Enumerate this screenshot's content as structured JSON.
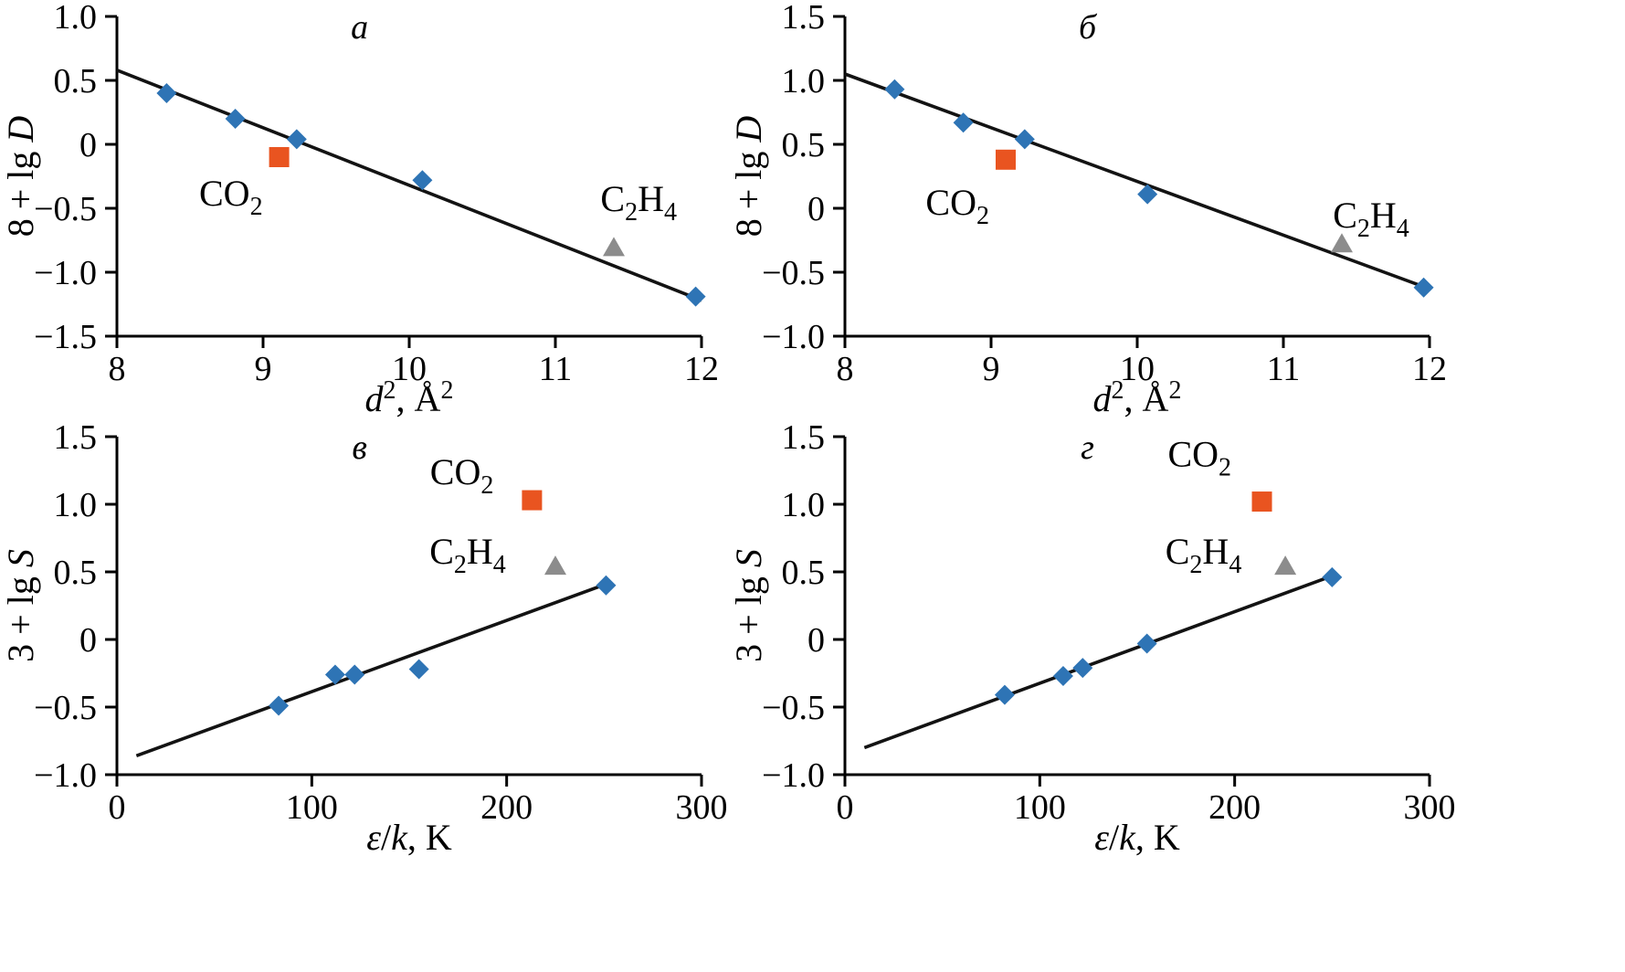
{
  "figure": {
    "background": "#ffffff"
  },
  "colors": {
    "axis": "#000000",
    "fit_line": "#131313",
    "diamond": "#2E74B5",
    "square": "#E95420",
    "triangle": "#8C8C8C"
  },
  "chart_data": [
    {
      "id": "a",
      "type": "scatter",
      "letter": "а",
      "xlim": [
        8,
        12
      ],
      "ylim": [
        -1.5,
        1.0
      ],
      "xticks": [
        {
          "v": 8,
          "label": "8"
        },
        {
          "v": 9,
          "label": "9"
        },
        {
          "v": 10,
          "label": "10"
        },
        {
          "v": 11,
          "label": "11"
        },
        {
          "v": 12,
          "label": "12"
        }
      ],
      "yticks": [
        {
          "v": 1.0,
          "label": "1.0"
        },
        {
          "v": 0.5,
          "label": "0.5"
        },
        {
          "v": 0,
          "label": "0"
        },
        {
          "v": -0.5,
          "label": "−0.5"
        },
        {
          "v": -1.0,
          "label": "−1.0"
        },
        {
          "v": -1.5,
          "label": "−1.5"
        }
      ],
      "xlabel": [
        {
          "t": "d",
          "i": true
        },
        {
          "t": "2",
          "sup": true
        },
        {
          "t": ", Å"
        },
        {
          "t": "2",
          "sup": true
        }
      ],
      "ylabel": [
        {
          "t": "8 + lg "
        },
        {
          "t": "D",
          "i": true
        }
      ],
      "fit_line": {
        "x1": 8,
        "y1": 0.58,
        "x2": 12,
        "y2": -1.22
      },
      "series": [
        {
          "name": "noble-gas-points",
          "marker": "diamond",
          "color": "#2E74B5",
          "points": [
            [
              8.34,
              0.4
            ],
            [
              8.81,
              0.2
            ],
            [
              9.23,
              0.04
            ],
            [
              10.09,
              -0.28
            ],
            [
              11.96,
              -1.19
            ]
          ]
        },
        {
          "name": "co2-point",
          "marker": "square",
          "color": "#E95420",
          "points": [
            [
              9.11,
              -0.1
            ]
          ]
        },
        {
          "name": "c2h4-point",
          "marker": "triangle",
          "color": "#8C8C8C",
          "points": [
            [
              11.4,
              -0.81
            ]
          ]
        }
      ],
      "annotations": [
        {
          "name": "co2-label",
          "x": 8.78,
          "y": -0.48,
          "segments": [
            {
              "t": "CO"
            },
            {
              "t": "2",
              "sub": true
            }
          ]
        },
        {
          "name": "c2h4-label",
          "x": 11.57,
          "y": -0.52,
          "segments": [
            {
              "t": "C"
            },
            {
              "t": "2",
              "sub": true
            },
            {
              "t": "H"
            },
            {
              "t": "4",
              "sub": true
            }
          ]
        }
      ]
    },
    {
      "id": "b",
      "type": "scatter",
      "letter": "б",
      "xlim": [
        8,
        12
      ],
      "ylim": [
        -1.0,
        1.5
      ],
      "xticks": [
        {
          "v": 8,
          "label": "8"
        },
        {
          "v": 9,
          "label": "9"
        },
        {
          "v": 10,
          "label": "10"
        },
        {
          "v": 11,
          "label": "11"
        },
        {
          "v": 12,
          "label": "12"
        }
      ],
      "yticks": [
        {
          "v": 1.5,
          "label": "1.5"
        },
        {
          "v": 1.0,
          "label": "1.0"
        },
        {
          "v": 0.5,
          "label": "0.5"
        },
        {
          "v": 0,
          "label": "0"
        },
        {
          "v": -0.5,
          "label": "−0.5"
        },
        {
          "v": -1.0,
          "label": "−1.0"
        }
      ],
      "xlabel": [
        {
          "t": "d",
          "i": true
        },
        {
          "t": "2",
          "sup": true
        },
        {
          "t": ", Å"
        },
        {
          "t": "2",
          "sup": true
        }
      ],
      "ylabel": [
        {
          "t": "8 + lg "
        },
        {
          "t": "D",
          "i": true
        }
      ],
      "fit_line": {
        "x1": 8,
        "y1": 1.05,
        "x2": 12,
        "y2": -0.63
      },
      "series": [
        {
          "name": "noble-gas-points",
          "marker": "diamond",
          "color": "#2E74B5",
          "points": [
            [
              8.34,
              0.93
            ],
            [
              8.81,
              0.67
            ],
            [
              9.23,
              0.54
            ],
            [
              10.07,
              0.11
            ],
            [
              11.96,
              -0.62
            ]
          ]
        },
        {
          "name": "co2-point",
          "marker": "square",
          "color": "#E95420",
          "points": [
            [
              9.1,
              0.38
            ]
          ]
        },
        {
          "name": "c2h4-point",
          "marker": "triangle",
          "color": "#8C8C8C",
          "points": [
            [
              11.4,
              -0.28
            ]
          ]
        }
      ],
      "annotations": [
        {
          "name": "co2-label",
          "x": 8.77,
          "y": -0.05,
          "segments": [
            {
              "t": "CO"
            },
            {
              "t": "2",
              "sub": true
            }
          ]
        },
        {
          "name": "c2h4-label",
          "x": 11.6,
          "y": -0.15,
          "segments": [
            {
              "t": "C"
            },
            {
              "t": "2",
              "sub": true
            },
            {
              "t": "H"
            },
            {
              "t": "4",
              "sub": true
            }
          ]
        }
      ]
    },
    {
      "id": "v",
      "type": "scatter",
      "letter": "в",
      "xlim": [
        0,
        300
      ],
      "ylim": [
        -1.0,
        1.5
      ],
      "xticks": [
        {
          "v": 0,
          "label": "0"
        },
        {
          "v": 100,
          "label": "100"
        },
        {
          "v": 200,
          "label": "200"
        },
        {
          "v": 300,
          "label": "300"
        }
      ],
      "yticks": [
        {
          "v": 1.5,
          "label": "1.5"
        },
        {
          "v": 1.0,
          "label": "1.0"
        },
        {
          "v": 0.5,
          "label": "0.5"
        },
        {
          "v": 0,
          "label": "0"
        },
        {
          "v": -0.5,
          "label": "−0.5"
        },
        {
          "v": -1.0,
          "label": "−1.0"
        }
      ],
      "xlabel": [
        {
          "t": "ε",
          "i": true
        },
        {
          "t": "/"
        },
        {
          "t": "k",
          "i": true
        },
        {
          "t": ", K"
        }
      ],
      "ylabel": [
        {
          "t": "3 + lg "
        },
        {
          "t": "S",
          "i": true
        }
      ],
      "fit_line": {
        "x1": 10,
        "y1": -0.86,
        "x2": 253,
        "y2": 0.42
      },
      "series": [
        {
          "name": "noble-gas-points",
          "marker": "diamond",
          "color": "#2E74B5",
          "points": [
            [
              83,
              -0.49
            ],
            [
              112,
              -0.26
            ],
            [
              122,
              -0.26
            ],
            [
              155,
              -0.22
            ],
            [
              251,
              0.4
            ]
          ]
        },
        {
          "name": "co2-point",
          "marker": "square",
          "color": "#E95420",
          "points": [
            [
              213,
              1.03
            ]
          ]
        },
        {
          "name": "c2h4-point",
          "marker": "triangle",
          "color": "#8C8C8C",
          "points": [
            [
              225,
              0.54
            ]
          ]
        }
      ],
      "annotations": [
        {
          "name": "co2-label",
          "x": 177,
          "y": 1.15,
          "segments": [
            {
              "t": "CO"
            },
            {
              "t": "2",
              "sub": true
            }
          ]
        },
        {
          "name": "c2h4-label",
          "x": 180,
          "y": 0.56,
          "segments": [
            {
              "t": "C"
            },
            {
              "t": "2",
              "sub": true
            },
            {
              "t": "H"
            },
            {
              "t": "4",
              "sub": true
            }
          ]
        }
      ]
    },
    {
      "id": "g",
      "type": "scatter",
      "letter": "г",
      "xlim": [
        0,
        300
      ],
      "ylim": [
        -1.0,
        1.5
      ],
      "xticks": [
        {
          "v": 0,
          "label": "0"
        },
        {
          "v": 100,
          "label": "100"
        },
        {
          "v": 200,
          "label": "200"
        },
        {
          "v": 300,
          "label": "300"
        }
      ],
      "yticks": [
        {
          "v": 1.5,
          "label": "1.5"
        },
        {
          "v": 1.0,
          "label": "1.0"
        },
        {
          "v": 0.5,
          "label": "0.5"
        },
        {
          "v": 0,
          "label": "0"
        },
        {
          "v": -0.5,
          "label": "−0.5"
        },
        {
          "v": -1.0,
          "label": "−1.0"
        }
      ],
      "xlabel": [
        {
          "t": "ε",
          "i": true
        },
        {
          "t": "/"
        },
        {
          "t": "k",
          "i": true
        },
        {
          "t": ", K"
        }
      ],
      "ylabel": [
        {
          "t": "3 + lg "
        },
        {
          "t": "S",
          "i": true
        }
      ],
      "fit_line": {
        "x1": 10,
        "y1": -0.8,
        "x2": 250,
        "y2": 0.47
      },
      "series": [
        {
          "name": "noble-gas-points",
          "marker": "diamond",
          "color": "#2E74B5",
          "points": [
            [
              82,
              -0.41
            ],
            [
              112,
              -0.27
            ],
            [
              122,
              -0.21
            ],
            [
              155,
              -0.03
            ],
            [
              250,
              0.46
            ]
          ]
        },
        {
          "name": "co2-point",
          "marker": "square",
          "color": "#E95420",
          "points": [
            [
              214,
              1.02
            ]
          ]
        },
        {
          "name": "c2h4-point",
          "marker": "triangle",
          "color": "#8C8C8C",
          "points": [
            [
              226,
              0.54
            ]
          ]
        }
      ],
      "annotations": [
        {
          "name": "co2-label",
          "x": 182,
          "y": 1.28,
          "segments": [
            {
              "t": "CO"
            },
            {
              "t": "2",
              "sub": true
            }
          ]
        },
        {
          "name": "c2h4-label",
          "x": 184,
          "y": 0.56,
          "segments": [
            {
              "t": "C"
            },
            {
              "t": "2",
              "sub": true
            },
            {
              "t": "H"
            },
            {
              "t": "4",
              "sub": true
            }
          ]
        }
      ]
    }
  ]
}
